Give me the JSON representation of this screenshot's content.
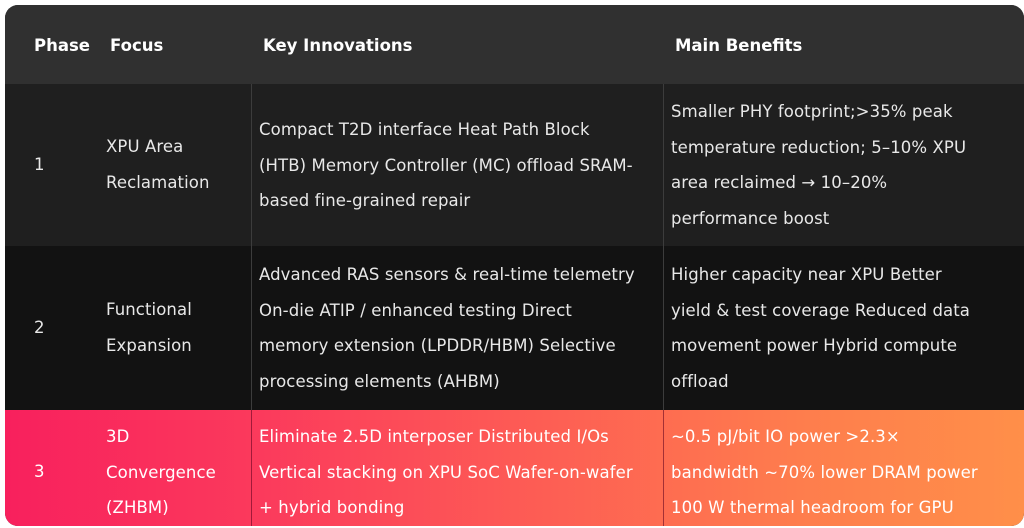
{
  "headers": {
    "phase": "Phase",
    "focus": "Focus",
    "innovations": "Key Innovations",
    "benefits": "Main Benefits"
  },
  "rows": [
    {
      "phase": "1",
      "focus": [
        "XPU Area",
        "Reclamation"
      ],
      "innovations": [
        "Compact T2D interface Heat Path Block",
        "(HTB) Memory Controller (MC) offload SRAM-",
        "based fine-grained repair"
      ],
      "benefits": [
        "Smaller PHY footprint;>35% peak",
        "temperature reduction; 5–10% XPU",
        "area reclaimed → 10–20%",
        "performance boost"
      ]
    },
    {
      "phase": "2",
      "focus": [
        "Functional",
        "Expansion"
      ],
      "innovations": [
        "Advanced RAS sensors & real-time telemetry",
        "On-die ATIP / enhanced testing Direct",
        "memory extension (LPDDR/HBM) Selective",
        "processing elements (AHBM)"
      ],
      "benefits": [
        "Higher capacity near XPU Better",
        "yield & test coverage Reduced data",
        "movement power Hybrid compute",
        "offload"
      ]
    },
    {
      "phase": "3",
      "focus": [
        "3D",
        "Convergence",
        "(ZHBM)"
      ],
      "innovations": [
        "Eliminate 2.5D interposer Distributed I/Os",
        "Vertical stacking on XPU SoC Wafer-on-wafer",
        "+ hybrid bonding"
      ],
      "benefits": [
        "~0.5 pJ/bit IO power >2.3×",
        "bandwidth ~70% lower DRAM power",
        "100 W thermal headroom for GPU"
      ]
    }
  ]
}
